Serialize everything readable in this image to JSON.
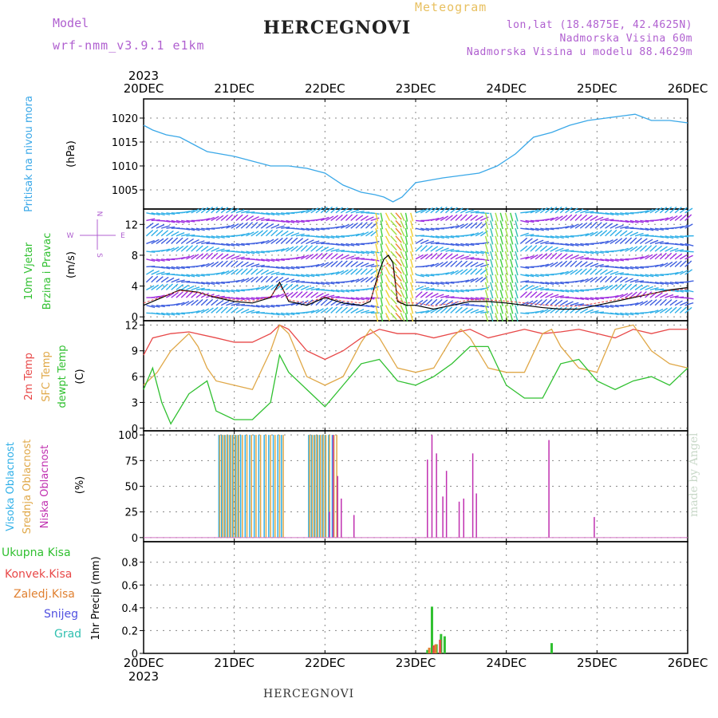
{
  "header": {
    "model_label": "Model",
    "model_name": "wrf-nmm_v3.9.1 e1km",
    "station": "HERCEGNOVI",
    "meteogram": "Meteogram",
    "lonlat": "lon,lat (18.4875E, 42.4625N)",
    "altitude": "Nadmorska Visina 60m",
    "model_altitude": "Nadmorska Visina u modelu 88.4629m",
    "year": "2023"
  },
  "footer": {
    "station": "HERCEGNOVI",
    "credit": "made by Angel"
  },
  "colors": {
    "pressure": "#3aa8e8",
    "temp2m": "#e84848",
    "sfc": "#e0a848",
    "dewpt": "#30c030",
    "high": "#30b0e8",
    "mid": "#e0a848",
    "low": "#c030b0",
    "total": "#30c030",
    "conv": "#e84848",
    "frozen": "#e08030",
    "snow": "#5050e0",
    "hail": "#30c0b0",
    "purple_label": "#b060d0"
  },
  "chart_data": [
    {
      "type": "line",
      "title": "Pritisak na nivou mora",
      "ylabel": "(hPa)",
      "ylim": [
        1001,
        1024
      ],
      "yticks": [
        1005,
        1010,
        1015,
        1020
      ],
      "x_ticks": [
        "20DEC",
        "21DEC",
        "22DEC",
        "23DEC",
        "24DEC",
        "25DEC",
        "26DEC"
      ],
      "series": [
        {
          "name": "Pritisak na nivou mora",
          "x": [
            0,
            0.1,
            0.25,
            0.4,
            0.55,
            0.7,
            0.85,
            1.0,
            1.2,
            1.4,
            1.6,
            1.8,
            2.0,
            2.2,
            2.4,
            2.55,
            2.65,
            2.75,
            2.85,
            3.0,
            3.15,
            3.3,
            3.5,
            3.7,
            3.9,
            4.1,
            4.3,
            4.5,
            4.7,
            4.9,
            5.1,
            5.3,
            5.42,
            5.6,
            5.8,
            6.0
          ],
          "y": [
            1018.5,
            1017.5,
            1016.5,
            1016,
            1014.5,
            1013,
            1012.5,
            1012,
            1011,
            1010,
            1010,
            1009.5,
            1008.5,
            1006,
            1004.5,
            1004,
            1003.5,
            1002.5,
            1003.5,
            1006.5,
            1007,
            1007.5,
            1008,
            1008.5,
            1010,
            1012.5,
            1016,
            1017,
            1018.5,
            1019.5,
            1020,
            1020.5,
            1020.8,
            1019.5,
            1019.5,
            1019
          ]
        }
      ]
    },
    {
      "type": "line",
      "title": "10m Vjetar Brzina i Pravac",
      "ylabel": "(m/s)",
      "ylim": [
        -0.5,
        14
      ],
      "yticks": [
        0,
        4,
        8,
        12
      ],
      "compass": {
        "n": "N",
        "s": "S",
        "w": "W",
        "e": "E"
      },
      "series": [
        {
          "name": "10m Vjetar",
          "x": [
            0,
            0.2,
            0.4,
            0.6,
            0.8,
            1.0,
            1.2,
            1.4,
            1.5,
            1.6,
            1.8,
            2.0,
            2.2,
            2.4,
            2.5,
            2.6,
            2.65,
            2.7,
            2.75,
            2.8,
            2.9,
            3.0,
            3.2,
            3.4,
            3.6,
            3.8,
            4.0,
            4.2,
            4.4,
            4.6,
            4.8,
            5.0,
            5.2,
            5.4,
            5.6,
            5.8,
            6.0
          ],
          "y": [
            1.5,
            2.5,
            3.5,
            3.2,
            2.5,
            2.0,
            1.8,
            2.5,
            4.5,
            2.0,
            1.5,
            2.5,
            1.8,
            1.5,
            2.0,
            6.0,
            7.5,
            8.0,
            7.0,
            2.0,
            1.5,
            1.5,
            1.0,
            1.5,
            2.0,
            2.0,
            1.8,
            1.5,
            1.2,
            1.0,
            1.0,
            1.5,
            2.0,
            2.5,
            3.0,
            3.5,
            3.8
          ]
        }
      ]
    },
    {
      "type": "line",
      "ylabel": "(C)",
      "ylim": [
        -0.3,
        12.5
      ],
      "yticks": [
        0,
        3,
        6,
        9,
        12
      ],
      "series": [
        {
          "name": "2m Temp",
          "x": [
            0,
            0.1,
            0.3,
            0.5,
            0.8,
            1.0,
            1.2,
            1.4,
            1.5,
            1.6,
            1.8,
            2.0,
            2.2,
            2.4,
            2.6,
            2.8,
            3.0,
            3.2,
            3.4,
            3.6,
            3.8,
            4.0,
            4.2,
            4.4,
            4.6,
            4.8,
            5.0,
            5.2,
            5.4,
            5.6,
            5.8,
            6.0
          ],
          "y": [
            8.5,
            10.5,
            11.0,
            11.2,
            10.5,
            10.0,
            10.0,
            11.0,
            12.0,
            11.5,
            9.0,
            8.0,
            9.0,
            10.5,
            11.5,
            11.0,
            11.0,
            10.5,
            11.0,
            11.5,
            10.5,
            11.0,
            11.5,
            11.0,
            11.2,
            11.5,
            11.0,
            10.5,
            11.5,
            11.0,
            11.5,
            11.5
          ]
        },
        {
          "name": "SFC Temp",
          "x": [
            0,
            0.15,
            0.3,
            0.5,
            0.6,
            0.7,
            0.8,
            1.0,
            1.2,
            1.4,
            1.5,
            1.6,
            1.8,
            2.0,
            2.2,
            2.4,
            2.5,
            2.6,
            2.8,
            3.0,
            3.2,
            3.4,
            3.5,
            3.6,
            3.8,
            4.0,
            4.2,
            4.4,
            4.5,
            4.6,
            4.8,
            5.0,
            5.2,
            5.4,
            5.6,
            5.8,
            6.0
          ],
          "y": [
            5.0,
            6.5,
            9.0,
            11.0,
            9.5,
            7.0,
            5.5,
            5.0,
            4.5,
            9.0,
            12.0,
            11.0,
            6.0,
            5.0,
            6.0,
            10.0,
            11.5,
            10.5,
            7.0,
            6.5,
            7.0,
            10.5,
            11.5,
            10.5,
            7.0,
            6.5,
            6.5,
            11.0,
            11.5,
            9.5,
            7.0,
            6.5,
            11.5,
            12.0,
            9.0,
            7.5,
            7.0
          ]
        },
        {
          "name": "dewpt Temp",
          "x": [
            0,
            0.1,
            0.2,
            0.3,
            0.5,
            0.7,
            0.8,
            1.0,
            1.2,
            1.4,
            1.5,
            1.6,
            1.8,
            2.0,
            2.2,
            2.4,
            2.6,
            2.8,
            3.0,
            3.2,
            3.4,
            3.6,
            3.8,
            4.0,
            4.2,
            4.4,
            4.6,
            4.8,
            5.0,
            5.2,
            5.4,
            5.6,
            5.8,
            6.0
          ],
          "y": [
            4.5,
            7.0,
            3.0,
            0.5,
            4.0,
            5.5,
            2.0,
            1.0,
            1.0,
            3.0,
            8.5,
            6.5,
            4.5,
            2.5,
            5.0,
            7.5,
            8.0,
            5.5,
            5.0,
            6.0,
            7.5,
            9.5,
            9.5,
            5.0,
            3.5,
            3.5,
            7.5,
            8.0,
            5.5,
            4.5,
            5.5,
            6.0,
            5.0,
            7.0
          ]
        }
      ]
    },
    {
      "type": "bar",
      "ylabel": "(%)",
      "ylim": [
        -4,
        104
      ],
      "yticks": [
        0,
        25,
        50,
        75,
        100
      ],
      "series": [
        {
          "name": "Visoka Oblacnost",
          "x": [
            0.83,
            0.86,
            0.89,
            0.92,
            0.95,
            0.98,
            1.01,
            1.04,
            1.07,
            1.12,
            1.17,
            1.22,
            1.27,
            1.33,
            1.38,
            1.43,
            1.48,
            1.52,
            1.82,
            1.85,
            1.88,
            1.91,
            1.94,
            1.97,
            2.0,
            2.04,
            2.08
          ],
          "y": [
            100,
            100,
            100,
            100,
            100,
            100,
            100,
            100,
            100,
            100,
            100,
            100,
            100,
            100,
            100,
            100,
            100,
            100,
            100,
            100,
            100,
            100,
            100,
            100,
            100,
            100,
            100
          ]
        },
        {
          "name": "Srednja Oblacnost",
          "x": [
            0.84,
            0.87,
            0.9,
            0.93,
            0.96,
            0.99,
            1.02,
            1.05,
            1.09,
            1.14,
            1.19,
            1.24,
            1.29,
            1.35,
            1.4,
            1.45,
            1.5,
            1.54,
            1.83,
            1.86,
            1.89,
            1.92,
            1.95,
            1.98,
            2.01,
            2.05,
            2.1,
            2.13
          ],
          "y": [
            100,
            100,
            100,
            100,
            100,
            100,
            100,
            100,
            100,
            100,
            100,
            100,
            100,
            100,
            100,
            100,
            100,
            100,
            100,
            100,
            100,
            100,
            100,
            100,
            100,
            100,
            100,
            100
          ]
        },
        {
          "name": "Niska Oblacnost",
          "x": [
            2.05,
            2.09,
            2.14,
            2.18,
            2.32,
            3.13,
            3.18,
            3.23,
            3.3,
            3.34,
            3.48,
            3.53,
            3.63,
            3.67,
            4.47,
            4.97
          ],
          "y": [
            25,
            100,
            60,
            38,
            22,
            76,
            100,
            82,
            40,
            65,
            35,
            38,
            82,
            43,
            95,
            20
          ]
        }
      ]
    },
    {
      "type": "bar",
      "ylabel": "1hr Precip (mm)",
      "ylim": [
        0,
        0.98
      ],
      "yticks": [
        0,
        0.2,
        0.4,
        0.6,
        0.8
      ],
      "series": [
        {
          "name": "Ukupna Kisa",
          "x": [
            3.13,
            3.18,
            3.23,
            3.28,
            3.32,
            4.5
          ],
          "y": [
            0.03,
            0.41,
            0.08,
            0.17,
            0.15,
            0.09
          ]
        },
        {
          "name": "Konvek.Kisa",
          "x": [
            3.2,
            3.27
          ],
          "y": [
            0.07,
            0.12
          ]
        },
        {
          "name": "Zaledj.Kisa",
          "x": [
            3.15,
            3.22
          ],
          "y": [
            0.05,
            0.08
          ]
        },
        {
          "name": "Snijeg",
          "x": [],
          "y": []
        },
        {
          "name": "Grad",
          "x": [],
          "y": []
        }
      ]
    }
  ]
}
